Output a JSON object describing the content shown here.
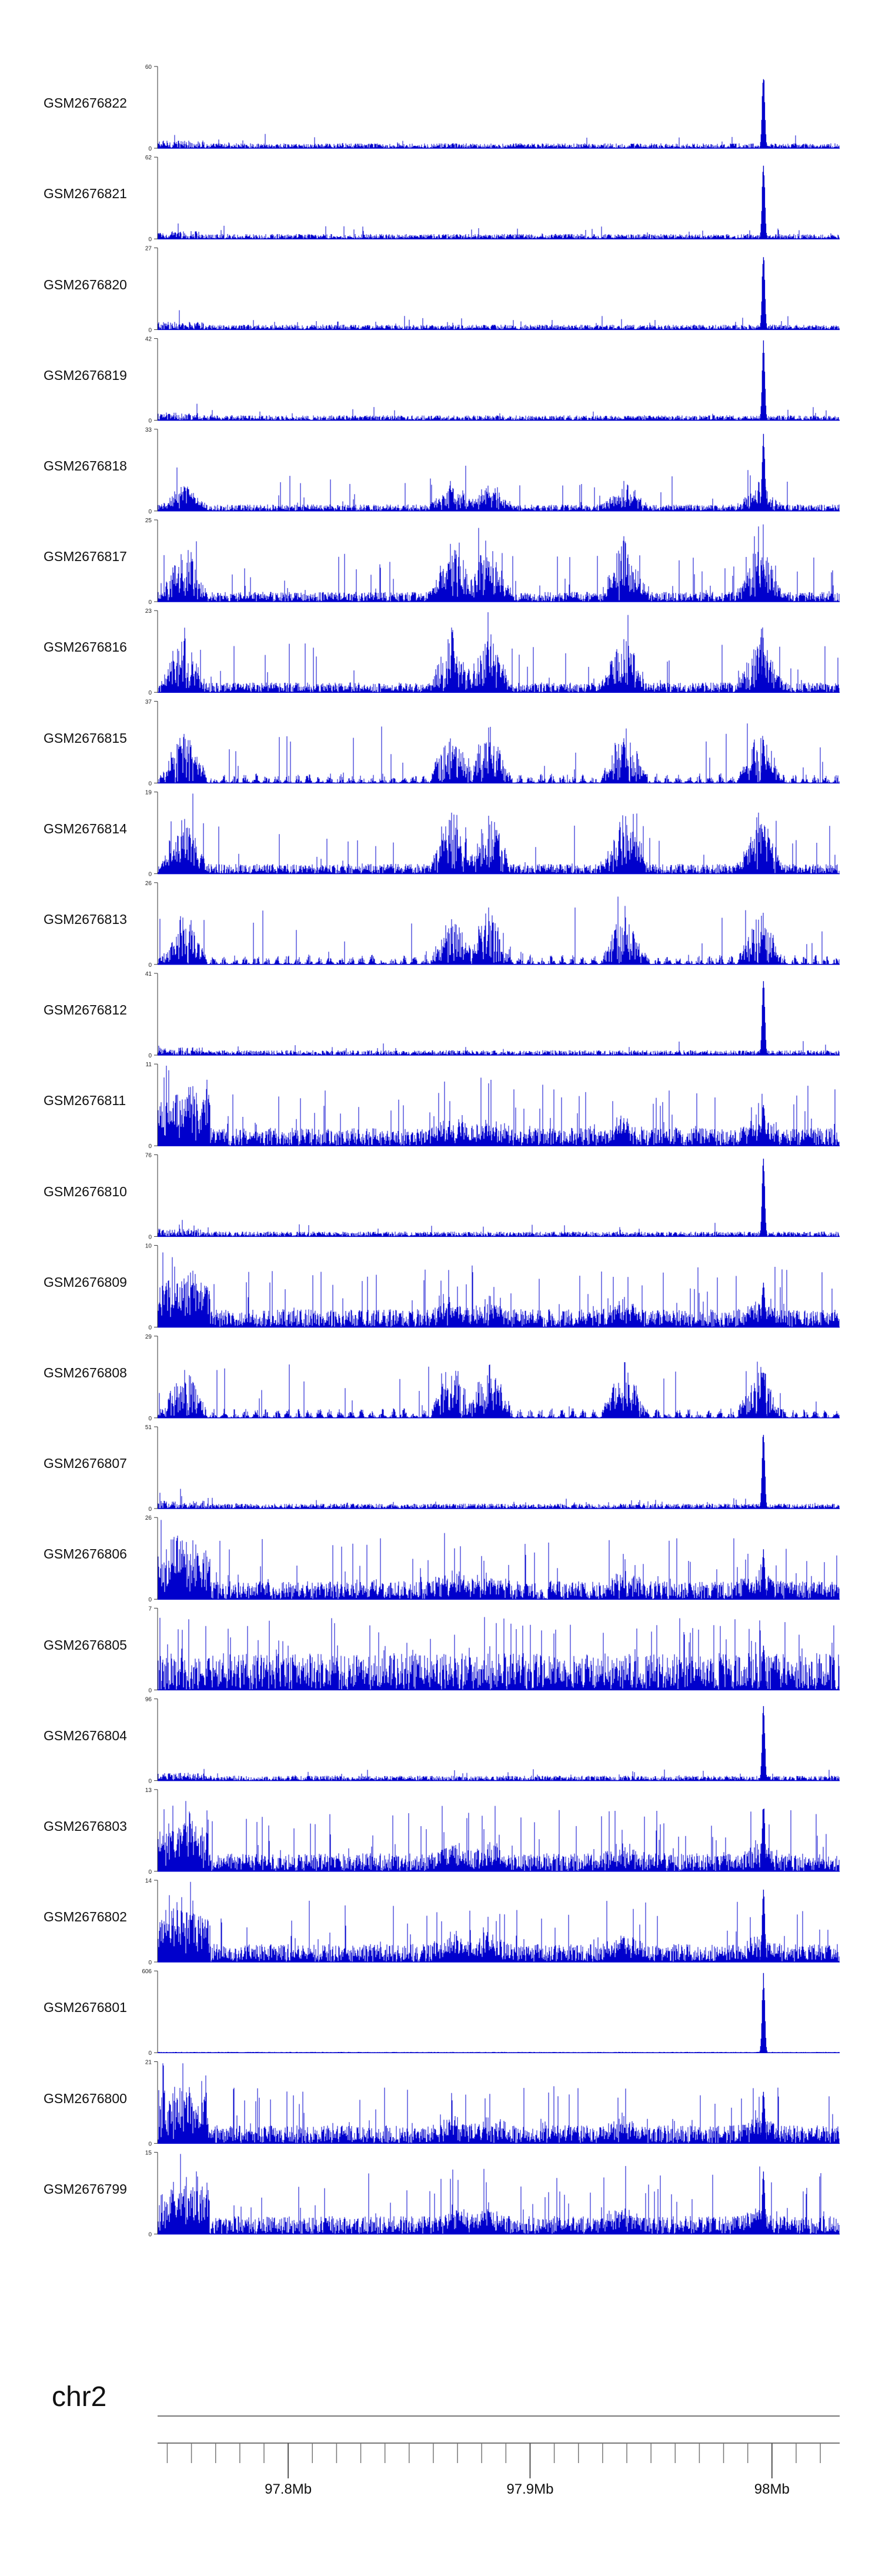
{
  "chart_data": {
    "type": "area",
    "chromosome": "chr2",
    "x_range_bp": [
      97746000,
      98028000
    ],
    "x_ticks": [
      {
        "pos": 97800000,
        "label": "97.8Mb"
      },
      {
        "pos": 97900000,
        "label": "97.9Mb"
      },
      {
        "pos": 98000000,
        "label": "98Mb"
      }
    ],
    "minor_tick_interval_bp": 20000,
    "bar_color": "#0000cc",
    "peak_position_bp": 97996500,
    "hotspots_bp": [
      97757000,
      97868000,
      97883000,
      97939000,
      97995000
    ],
    "tracks": [
      {
        "name": "GSM2676822",
        "ymax": 60,
        "style": "peak"
      },
      {
        "name": "GSM2676821",
        "ymax": 62,
        "style": "peak"
      },
      {
        "name": "GSM2676820",
        "ymax": 27,
        "style": "peak"
      },
      {
        "name": "GSM2676819",
        "ymax": 42,
        "style": "peak"
      },
      {
        "name": "GSM2676818",
        "ymax": 33,
        "style": "mixed"
      },
      {
        "name": "GSM2676817",
        "ymax": 25,
        "style": "spiky"
      },
      {
        "name": "GSM2676816",
        "ymax": 23,
        "style": "spiky"
      },
      {
        "name": "GSM2676815",
        "ymax": 37,
        "style": "sparse"
      },
      {
        "name": "GSM2676814",
        "ymax": 19,
        "style": "spiky"
      },
      {
        "name": "GSM2676813",
        "ymax": 26,
        "style": "sparse"
      },
      {
        "name": "GSM2676812",
        "ymax": 41,
        "style": "peak"
      },
      {
        "name": "GSM2676811",
        "ymax": 11,
        "style": "dense"
      },
      {
        "name": "GSM2676810",
        "ymax": 76,
        "style": "peak"
      },
      {
        "name": "GSM2676809",
        "ymax": 10,
        "style": "dense"
      },
      {
        "name": "GSM2676808",
        "ymax": 29,
        "style": "sparse"
      },
      {
        "name": "GSM2676807",
        "ymax": 51,
        "style": "peak"
      },
      {
        "name": "GSM2676806",
        "ymax": 26,
        "style": "dense"
      },
      {
        "name": "GSM2676805",
        "ymax": 7,
        "style": "verydense"
      },
      {
        "name": "GSM2676804",
        "ymax": 96,
        "style": "peak"
      },
      {
        "name": "GSM2676803",
        "ymax": 13,
        "style": "dense"
      },
      {
        "name": "GSM2676802",
        "ymax": 14,
        "style": "dense"
      },
      {
        "name": "GSM2676801",
        "ymax": 606,
        "style": "singlepeak"
      },
      {
        "name": "GSM2676800",
        "ymax": 21,
        "style": "dense"
      },
      {
        "name": "GSM2676799",
        "ymax": 15,
        "style": "dense"
      }
    ]
  }
}
